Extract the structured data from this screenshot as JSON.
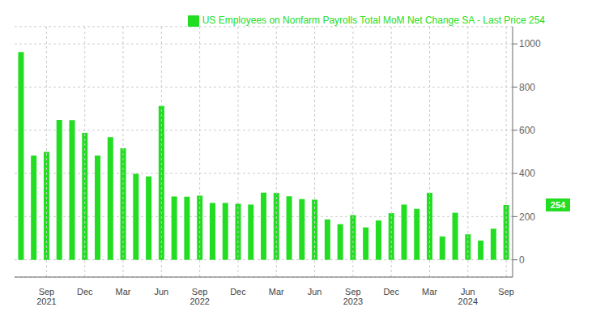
{
  "chart_data": {
    "type": "bar",
    "categories": [
      null,
      null,
      "Sep\n2021",
      null,
      null,
      "Dec",
      null,
      null,
      "Mar",
      null,
      null,
      "Jun",
      null,
      null,
      "Sep\n2022",
      null,
      null,
      "Dec",
      null,
      null,
      "Mar",
      null,
      null,
      "Jun",
      null,
      null,
      "Sep\n2023",
      null,
      null,
      "Dec",
      null,
      null,
      "Mar",
      null,
      null,
      "Jun\n2024",
      null,
      null,
      "Sep"
    ],
    "series": [
      {
        "name": "US Employees on Nonfarm Payrolls Total MoM Net Change SA - Last Price 254",
        "color": "#22dd22",
        "values": [
          962,
          483,
          500,
          648,
          647,
          588,
          483,
          568,
          517,
          398,
          386,
          713,
          293,
          292,
          297,
          263,
          263,
          260,
          256,
          311,
          310,
          294,
          281,
          278,
          187,
          165,
          207,
          150,
          182,
          216,
          256,
          236,
          310,
          108,
          218,
          118,
          89,
          144,
          254
        ]
      }
    ],
    "ylim": [
      -80,
      1080
    ],
    "yticks": [
      0,
      200,
      400,
      600,
      800,
      1000
    ],
    "grid": true,
    "legend": "upper right",
    "annotations": [
      {
        "text": "254",
        "y": 254
      }
    ]
  }
}
